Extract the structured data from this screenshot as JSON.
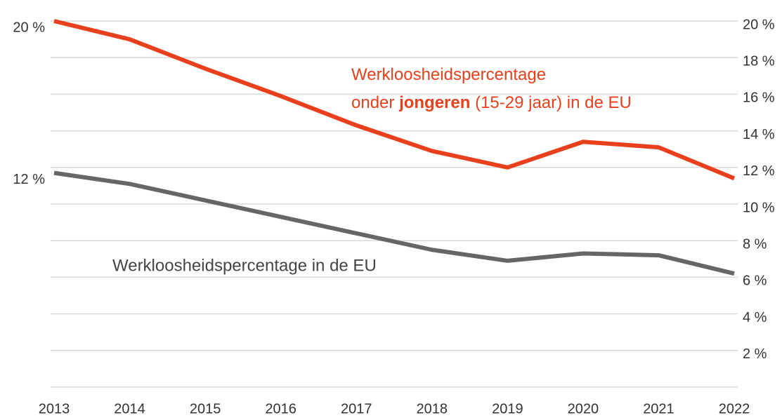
{
  "chart_data": {
    "type": "line",
    "categories": [
      "2013",
      "2014",
      "2015",
      "2016",
      "2017",
      "2018",
      "2019",
      "2020",
      "2021",
      "2022"
    ],
    "ylim": [
      0,
      20
    ],
    "yticks": [
      {
        "value": 2,
        "label": "2 %"
      },
      {
        "value": 4,
        "label": "4 %"
      },
      {
        "value": 6,
        "label": "6 %"
      },
      {
        "value": 8,
        "label": "8 %"
      },
      {
        "value": 10,
        "label": "10 %"
      },
      {
        "value": 12,
        "label": "12 %"
      },
      {
        "value": 14,
        "label": "14 %"
      },
      {
        "value": 16,
        "label": "16 %"
      },
      {
        "value": 18,
        "label": "18 %"
      },
      {
        "value": 20,
        "label": "20 %"
      }
    ],
    "grid": true,
    "series": [
      {
        "label_lines": [
          [
            "Werkloosheidspercentage"
          ],
          [
            "onder ",
            "jongeren",
            " (15-29 jaar) in de EU"
          ]
        ],
        "label_bold": [
          [],
          [
            1
          ]
        ],
        "color": "#e8401c",
        "values": [
          20.0,
          19.0,
          17.4,
          15.9,
          14.3,
          12.9,
          12.0,
          13.4,
          13.1,
          11.4
        ],
        "value_labels": [
          "20 %",
          null,
          null,
          null,
          null,
          null,
          null,
          null,
          null,
          null
        ]
      },
      {
        "name": "Werkloosheidspercentage in de EU",
        "color": "#666666",
        "values": [
          11.7,
          11.1,
          10.2,
          9.3,
          8.4,
          7.5,
          6.9,
          7.3,
          7.2,
          6.2
        ],
        "value_labels": [
          "12 %",
          null,
          null,
          null,
          null,
          null,
          null,
          null,
          null,
          null
        ]
      }
    ]
  }
}
